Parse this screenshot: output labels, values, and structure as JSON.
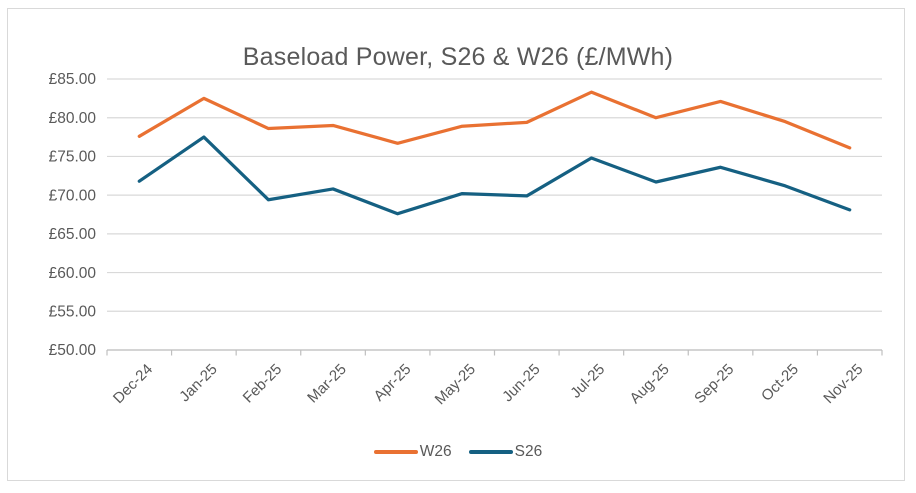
{
  "chart_data": {
    "type": "line",
    "title": "Baseload Power, S26 & W26 (£/MWh)",
    "categories": [
      "Dec-24",
      "Jan-25",
      "Feb-25",
      "Mar-25",
      "Apr-25",
      "May-25",
      "Jun-25",
      "Jul-25",
      "Aug-25",
      "Sep-25",
      "Oct-25",
      "Nov-25"
    ],
    "series": [
      {
        "name": "W26",
        "color": "#E97132",
        "values": [
          77.6,
          82.5,
          78.6,
          79.0,
          76.7,
          78.9,
          79.4,
          83.3,
          80.0,
          82.1,
          79.5,
          76.1
        ]
      },
      {
        "name": "S26",
        "color": "#156082",
        "values": [
          71.8,
          77.5,
          69.4,
          70.8,
          67.6,
          70.2,
          69.9,
          74.8,
          71.7,
          73.6,
          71.2,
          68.1
        ]
      }
    ],
    "y_ticks": [
      {
        "label": "£85.00",
        "value": 85
      },
      {
        "label": "£80.00",
        "value": 80
      },
      {
        "label": "£75.00",
        "value": 75
      },
      {
        "label": "£70.00",
        "value": 70
      },
      {
        "label": "£65.00",
        "value": 65
      },
      {
        "label": "£60.00",
        "value": 60
      },
      {
        "label": "£55.00",
        "value": 55
      },
      {
        "label": "£50.00",
        "value": 50
      }
    ],
    "ylim": [
      50,
      85
    ],
    "xlabel": "",
    "ylabel": "",
    "grid": true,
    "legend_position": "bottom",
    "currency_prefix": "£"
  }
}
